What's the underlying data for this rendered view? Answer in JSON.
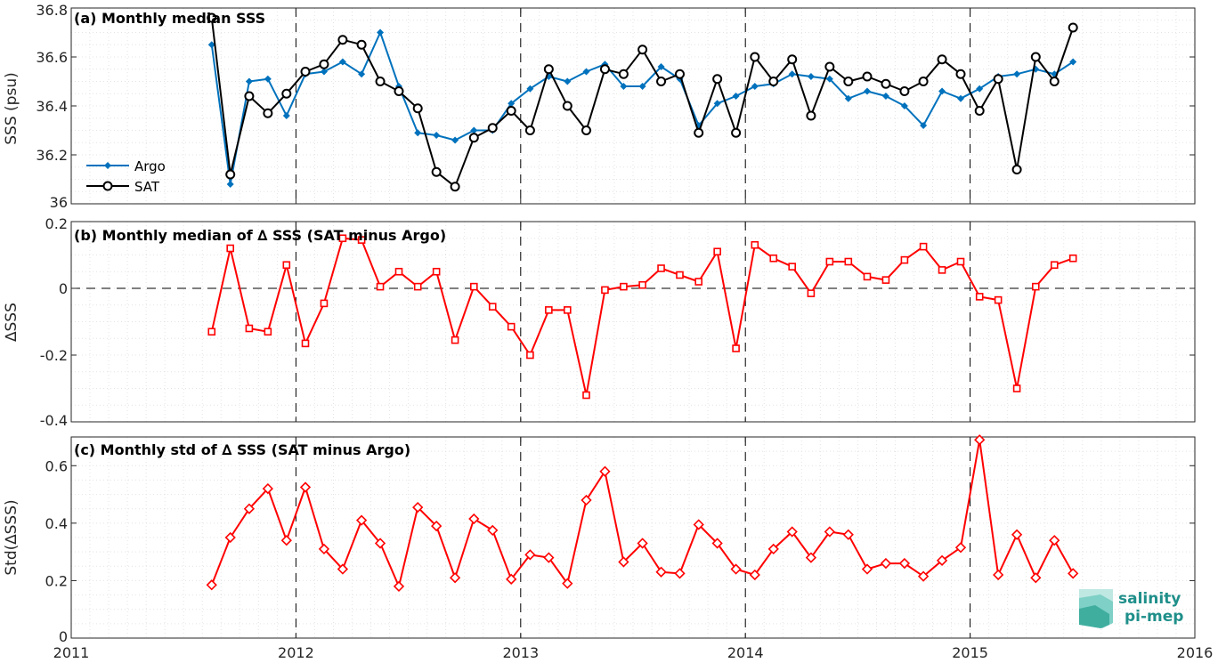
{
  "chart_data": [
    {
      "type": "line",
      "title": "(a) Monthly median SSS",
      "ylabel": "SSS (psu)",
      "xlim": [
        2011,
        2016
      ],
      "ylim": [
        36,
        36.8
      ],
      "yticks": [
        "36",
        "36.2",
        "36.4",
        "36.6",
        "36.8"
      ],
      "grid": true,
      "legend_location": "lower-left",
      "series": [
        {
          "name": "Argo",
          "color": "#0072BD",
          "marker": "diamond",
          "x": [
            2011.625,
            2011.708,
            2011.792,
            2011.875,
            2011.958,
            2012.042,
            2012.125,
            2012.208,
            2012.292,
            2012.375,
            2012.458,
            2012.542,
            2012.625,
            2012.708,
            2012.792,
            2012.875,
            2012.958,
            2013.042,
            2013.125,
            2013.208,
            2013.292,
            2013.375,
            2013.458,
            2013.542,
            2013.625,
            2013.708,
            2013.792,
            2013.875,
            2013.958,
            2014.042,
            2014.125,
            2014.208,
            2014.292,
            2014.375,
            2014.458,
            2014.542,
            2014.625,
            2014.708,
            2014.792,
            2014.875,
            2014.958,
            2015.042,
            2015.125,
            2015.208,
            2015.292,
            2015.375,
            2015.458
          ],
          "y": [
            36.65,
            36.08,
            36.5,
            36.51,
            36.36,
            36.53,
            36.54,
            36.58,
            36.53,
            36.7,
            36.48,
            36.29,
            36.28,
            36.26,
            36.3,
            36.3,
            36.41,
            36.47,
            36.52,
            36.5,
            36.54,
            36.57,
            36.48,
            36.48,
            36.56,
            36.51,
            36.32,
            36.41,
            36.44,
            36.48,
            36.49,
            36.53,
            36.52,
            36.51,
            36.43,
            36.46,
            36.44,
            36.4,
            36.32,
            36.46,
            36.43,
            36.47,
            36.52,
            36.53,
            36.55,
            36.53,
            36.58
          ]
        },
        {
          "name": "SAT",
          "color": "#000000",
          "marker": "circle",
          "x": [
            2011.625,
            2011.708,
            2011.792,
            2011.875,
            2011.958,
            2012.042,
            2012.125,
            2012.208,
            2012.292,
            2012.375,
            2012.458,
            2012.542,
            2012.625,
            2012.708,
            2012.792,
            2012.875,
            2012.958,
            2013.042,
            2013.125,
            2013.208,
            2013.292,
            2013.375,
            2013.458,
            2013.542,
            2013.625,
            2013.708,
            2013.792,
            2013.875,
            2013.958,
            2014.042,
            2014.125,
            2014.208,
            2014.292,
            2014.375,
            2014.458,
            2014.542,
            2014.625,
            2014.708,
            2014.792,
            2014.875,
            2014.958,
            2015.042,
            2015.125,
            2015.208,
            2015.292,
            2015.375,
            2015.458
          ],
          "y": [
            36.76,
            36.12,
            36.44,
            36.37,
            36.45,
            36.54,
            36.57,
            36.67,
            36.65,
            36.5,
            36.46,
            36.39,
            36.13,
            36.07,
            36.27,
            36.31,
            36.38,
            36.3,
            36.55,
            36.4,
            36.3,
            36.55,
            36.53,
            36.63,
            36.5,
            36.53,
            36.29,
            36.51,
            36.29,
            36.6,
            36.5,
            36.59,
            36.36,
            36.56,
            36.5,
            36.52,
            36.49,
            36.46,
            36.5,
            36.59,
            36.53,
            36.38,
            36.51,
            36.14,
            36.6,
            36.5,
            36.72
          ]
        }
      ]
    },
    {
      "type": "line",
      "title": "(b) Monthly median of ∆ SSS (SAT minus Argo)",
      "ylabel": "∆SSS",
      "xlim": [
        2011,
        2016
      ],
      "ylim": [
        -0.4,
        0.2
      ],
      "yticks": [
        "-0.4",
        "-0.2",
        "0",
        "0.2"
      ],
      "zero_line": true,
      "grid": true,
      "series": [
        {
          "color": "#FF0000",
          "marker": "square",
          "x": [
            2011.625,
            2011.708,
            2011.792,
            2011.875,
            2011.958,
            2012.042,
            2012.125,
            2012.208,
            2012.292,
            2012.375,
            2012.458,
            2012.542,
            2012.625,
            2012.708,
            2012.792,
            2012.875,
            2012.958,
            2013.042,
            2013.125,
            2013.208,
            2013.292,
            2013.375,
            2013.458,
            2013.542,
            2013.625,
            2013.708,
            2013.792,
            2013.875,
            2013.958,
            2014.042,
            2014.125,
            2014.208,
            2014.292,
            2014.375,
            2014.458,
            2014.542,
            2014.625,
            2014.708,
            2014.792,
            2014.875,
            2014.958,
            2015.042,
            2015.125,
            2015.208,
            2015.292,
            2015.375,
            2015.458
          ],
          "y": [
            -0.13,
            0.12,
            -0.12,
            -0.13,
            0.07,
            -0.165,
            -0.045,
            0.15,
            0.145,
            0.005,
            0.05,
            0.005,
            0.05,
            -0.155,
            0.005,
            -0.055,
            -0.115,
            -0.2,
            -0.065,
            -0.065,
            -0.32,
            -0.005,
            0.005,
            0.01,
            0.06,
            0.04,
            0.02,
            0.11,
            -0.18,
            0.13,
            0.09,
            0.065,
            -0.015,
            0.08,
            0.08,
            0.035,
            0.025,
            0.085,
            0.125,
            0.055,
            0.08,
            -0.025,
            -0.035,
            -0.3,
            0.005,
            0.07,
            0.09
          ]
        }
      ]
    },
    {
      "type": "line",
      "title": "(c) Monthly std of ∆ SSS (SAT minus Argo)",
      "ylabel": "Std(∆SSS)",
      "xlabel": "",
      "xlim": [
        2011,
        2016
      ],
      "ylim": [
        0,
        0.7
      ],
      "xticks": [
        "2011",
        "2012",
        "2013",
        "2014",
        "2015",
        "2016"
      ],
      "yticks": [
        "0",
        "0.2",
        "0.4",
        "0.6"
      ],
      "grid": true,
      "series": [
        {
          "color": "#FF0000",
          "marker": "diamond",
          "x": [
            2011.625,
            2011.708,
            2011.792,
            2011.875,
            2011.958,
            2012.042,
            2012.125,
            2012.208,
            2012.292,
            2012.375,
            2012.458,
            2012.542,
            2012.625,
            2012.708,
            2012.792,
            2012.875,
            2012.958,
            2013.042,
            2013.125,
            2013.208,
            2013.292,
            2013.375,
            2013.458,
            2013.542,
            2013.625,
            2013.708,
            2013.792,
            2013.875,
            2013.958,
            2014.042,
            2014.125,
            2014.208,
            2014.292,
            2014.375,
            2014.458,
            2014.542,
            2014.625,
            2014.708,
            2014.792,
            2014.875,
            2014.958,
            2015.042,
            2015.125,
            2015.208,
            2015.292,
            2015.375,
            2015.458
          ],
          "y": [
            0.185,
            0.35,
            0.45,
            0.52,
            0.34,
            0.525,
            0.31,
            0.24,
            0.41,
            0.33,
            0.18,
            0.455,
            0.39,
            0.21,
            0.415,
            0.375,
            0.205,
            0.29,
            0.28,
            0.19,
            0.48,
            0.58,
            0.265,
            0.33,
            0.23,
            0.225,
            0.395,
            0.33,
            0.24,
            0.22,
            0.31,
            0.37,
            0.28,
            0.37,
            0.36,
            0.24,
            0.26,
            0.26,
            0.215,
            0.27,
            0.315,
            0.69,
            0.22,
            0.36,
            0.21,
            0.34,
            0.225
          ]
        }
      ]
    }
  ],
  "legend": {
    "argo": "Argo",
    "sat": "SAT"
  },
  "logo": {
    "line1": "salinity",
    "line2": "pi-mep"
  }
}
